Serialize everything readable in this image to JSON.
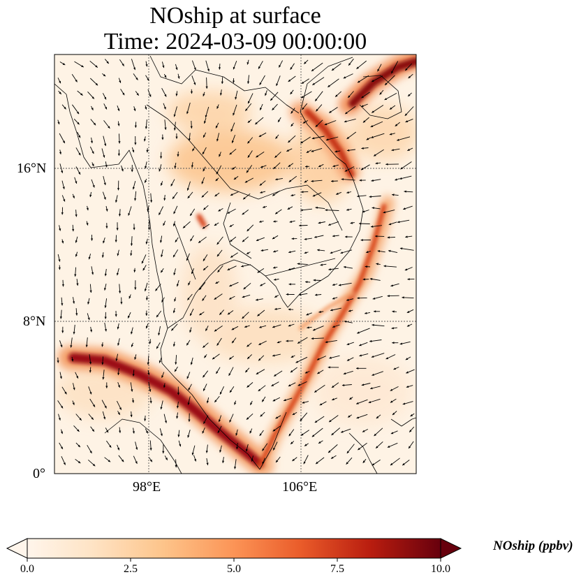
{
  "title": {
    "line1": "NOship at surface",
    "line2": "Time: 2024-03-09 00:00:00"
  },
  "axes": {
    "lat_ticks": [
      "16°N",
      "8°N",
      "0°"
    ],
    "lon_ticks": [
      "98°E",
      "106°E"
    ],
    "gridlines": true
  },
  "colorbar": {
    "label": "NOship (ppbv)",
    "ticks": [
      "0.0",
      "2.5",
      "5.0",
      "7.5",
      "10.0"
    ],
    "min": 0,
    "max": 10,
    "extend": "both",
    "colormap": [
      "#fff5eb",
      "#fdd3a6",
      "#fda25b",
      "#f16a2a",
      "#c93a0d",
      "#a50f15",
      "#67000d"
    ]
  },
  "colors": {
    "ocean_base": "#fef3e5",
    "land_base": "#fde7cc",
    "coastline": "#000000"
  }
}
